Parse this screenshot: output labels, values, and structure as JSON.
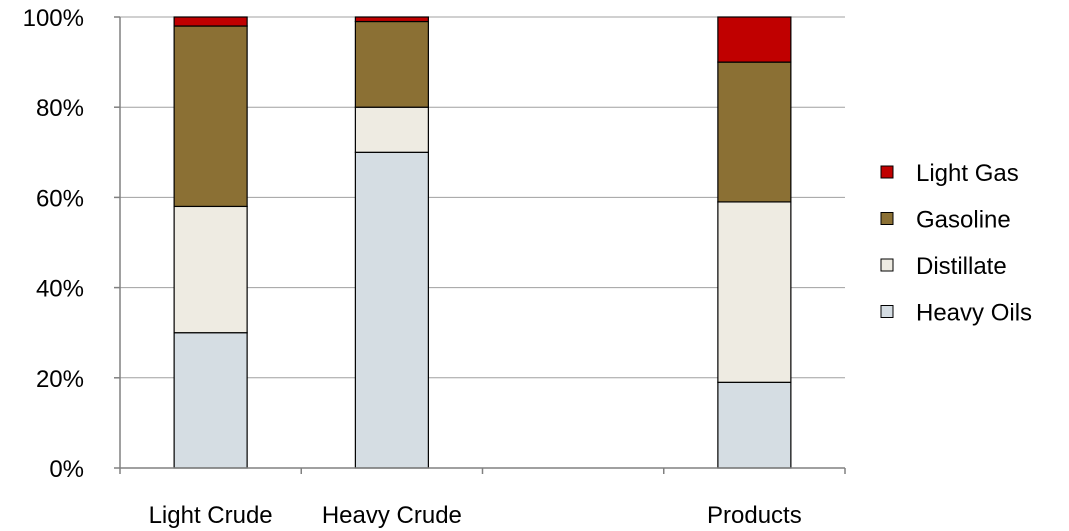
{
  "chart_data": {
    "type": "bar",
    "stacked": true,
    "categories": [
      "Light Crude",
      "Heavy Crude",
      "",
      "Products"
    ],
    "series": [
      {
        "name": "Heavy Oils",
        "color": "#d5dde3",
        "values": [
          30,
          70,
          null,
          19
        ]
      },
      {
        "name": "Distillate",
        "color": "#eeebe2",
        "values": [
          28,
          10,
          null,
          40
        ]
      },
      {
        "name": "Gasoline",
        "color": "#8b7034",
        "values": [
          40,
          19,
          null,
          31
        ]
      },
      {
        "name": "Light Gas",
        "color": "#c00000",
        "values": [
          2,
          1,
          null,
          10
        ]
      }
    ],
    "ylim": [
      0,
      100
    ],
    "yticks": [
      "0%",
      "20%",
      "40%",
      "60%",
      "80%",
      "100%"
    ],
    "ytick_values": [
      0,
      20,
      40,
      60,
      80,
      100
    ],
    "grid": true,
    "legend_position": "right",
    "legend_order": [
      "Light Gas",
      "Gasoline",
      "Distillate",
      "Heavy Oils"
    ],
    "title": "",
    "xlabel": "",
    "ylabel": ""
  }
}
